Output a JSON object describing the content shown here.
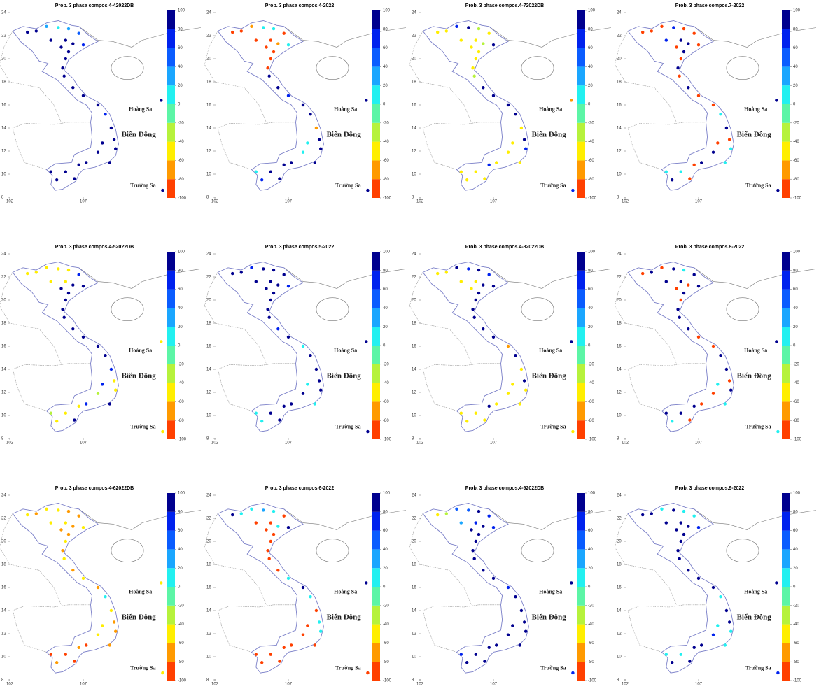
{
  "colorbar": {
    "ticks": [
      100,
      80,
      60,
      40,
      20,
      0,
      -20,
      -40,
      -60,
      -80,
      -100
    ],
    "colors": [
      "#ff4000",
      "#ff9a00",
      "#ffee00",
      "#b6f23c",
      "#5cf5a6",
      "#22f0f0",
      "#1aa6ff",
      "#0a5cff",
      "#0022ee",
      "#00008f"
    ]
  },
  "lat_ticks": [
    24,
    22,
    20,
    18,
    16,
    14,
    12,
    10,
    8
  ],
  "lon_ticks": [
    102,
    107
  ],
  "labels": {
    "hoang_sa": "Hoàng Sa",
    "bien_dong": "Biển Đông",
    "truong_sa": "Trường Sa"
  },
  "stations": [
    [
      103.2,
      22.3
    ],
    [
      103.8,
      22.4
    ],
    [
      104.5,
      22.8
    ],
    [
      105.3,
      22.7
    ],
    [
      106,
      22.6
    ],
    [
      106.7,
      22.2
    ],
    [
      105.8,
      21.6
    ],
    [
      106.3,
      21.3
    ],
    [
      107,
      21.2
    ],
    [
      105.5,
      21
    ],
    [
      104.8,
      21.6
    ],
    [
      106,
      20.6
    ],
    [
      105.8,
      20
    ],
    [
      105.6,
      19.2
    ],
    [
      105.7,
      18.5
    ],
    [
      106.3,
      17.5
    ],
    [
      107,
      16.8
    ],
    [
      108,
      16
    ],
    [
      108.5,
      15.2
    ],
    [
      108.9,
      14
    ],
    [
      109.1,
      13
    ],
    [
      108.3,
      12.7
    ],
    [
      109.2,
      12.2
    ],
    [
      108,
      11.9
    ],
    [
      108.8,
      11
    ],
    [
      107.2,
      11
    ],
    [
      106.7,
      10.8
    ],
    [
      105.8,
      10.2
    ],
    [
      105.2,
      9.5
    ],
    [
      106.4,
      9.6
    ],
    [
      104.8,
      10.2
    ],
    [
      112.3,
      16.4
    ],
    [
      112.4,
      8.6
    ]
  ],
  "panels": [
    {
      "title": "Prob. 3 phase compos.4-42022DB",
      "values": [
        90,
        90,
        30,
        10,
        30,
        50,
        90,
        90,
        70,
        90,
        90,
        90,
        90,
        90,
        90,
        90,
        90,
        90,
        70,
        90,
        90,
        90,
        90,
        90,
        90,
        90,
        90,
        90,
        90,
        90,
        90,
        90,
        90
      ]
    },
    {
      "title": "Prob. 3 phase compos.4-2022",
      "values": [
        -90,
        -90,
        -70,
        10,
        10,
        -90,
        -90,
        -70,
        10,
        -90,
        -90,
        -90,
        -90,
        -90,
        90,
        90,
        70,
        90,
        90,
        -70,
        90,
        10,
        90,
        10,
        90,
        90,
        90,
        90,
        70,
        90,
        10,
        90,
        90
      ]
    },
    {
      "title": "Prob. 3 phase compos.4-72022DB",
      "values": [
        -50,
        -50,
        70,
        90,
        -30,
        -50,
        -50,
        -30,
        90,
        -50,
        -50,
        -50,
        -50,
        -50,
        -30,
        90,
        90,
        90,
        90,
        -50,
        90,
        -50,
        70,
        -50,
        -50,
        -50,
        70,
        -50,
        -50,
        -50,
        -50,
        -70,
        70
      ]
    },
    {
      "title": "Prob. 3 phase compos.7-2022",
      "values": [
        -90,
        -90,
        -90,
        70,
        -90,
        -90,
        90,
        90,
        -90,
        -90,
        70,
        90,
        -90,
        90,
        -90,
        90,
        -90,
        -90,
        10,
        90,
        -90,
        -90,
        10,
        90,
        10,
        90,
        -90,
        10,
        90,
        -90,
        10,
        90,
        90
      ]
    },
    {
      "title": "Prob. 3 phase compos.4-52022DB",
      "values": [
        -50,
        -50,
        -50,
        -50,
        -50,
        70,
        -50,
        90,
        90,
        90,
        -50,
        90,
        90,
        90,
        90,
        90,
        90,
        90,
        90,
        70,
        -50,
        70,
        -50,
        -30,
        90,
        70,
        -50,
        -50,
        -50,
        90,
        -30,
        -50,
        -50
      ]
    },
    {
      "title": "Prob. 3 phase compos.5-2022",
      "values": [
        90,
        90,
        70,
        90,
        90,
        90,
        90,
        90,
        70,
        90,
        90,
        90,
        90,
        90,
        90,
        70,
        90,
        10,
        90,
        90,
        90,
        10,
        90,
        90,
        10,
        90,
        90,
        90,
        10,
        90,
        10,
        90,
        90
      ]
    },
    {
      "title": "Prob. 3 phase compos.4-82022DB",
      "values": [
        -50,
        -50,
        90,
        70,
        90,
        70,
        -50,
        90,
        90,
        -50,
        -50,
        90,
        90,
        90,
        90,
        90,
        90,
        -70,
        90,
        -50,
        90,
        -50,
        -50,
        -50,
        -50,
        -50,
        90,
        -50,
        -50,
        -50,
        -50,
        90,
        -50
      ]
    },
    {
      "title": "Prob. 3 phase compos.8-2022",
      "values": [
        -90,
        90,
        -90,
        90,
        10,
        90,
        90,
        -90,
        90,
        -90,
        90,
        90,
        -90,
        90,
        90,
        90,
        -90,
        -90,
        90,
        90,
        -90,
        10,
        90,
        -90,
        10,
        -90,
        90,
        90,
        10,
        -90,
        90,
        90,
        10
      ]
    },
    {
      "title": "Prob. 3 phase compos.4-62022DB",
      "values": [
        -50,
        -70,
        -50,
        -50,
        -70,
        -70,
        -50,
        -70,
        -50,
        -70,
        -50,
        -70,
        -50,
        -70,
        -50,
        -70,
        -50,
        -70,
        10,
        -50,
        -70,
        -50,
        -70,
        -50,
        -70,
        -90,
        -70,
        -90,
        -70,
        -90,
        -90,
        -50,
        -50
      ]
    },
    {
      "title": "Prob. 3 phase compos.6-2022",
      "values": [
        90,
        10,
        10,
        30,
        10,
        -90,
        -90,
        10,
        90,
        -90,
        -90,
        -90,
        -90,
        -90,
        -90,
        -90,
        10,
        90,
        10,
        -90,
        10,
        -90,
        10,
        -90,
        -90,
        -90,
        -90,
        -90,
        -90,
        -90,
        -90,
        90,
        -90
      ]
    },
    {
      "title": "Prob. 3 phase compos.4-92022DB",
      "values": [
        -50,
        -30,
        50,
        50,
        90,
        70,
        70,
        90,
        70,
        90,
        30,
        90,
        90,
        90,
        90,
        90,
        90,
        70,
        90,
        90,
        90,
        90,
        90,
        90,
        90,
        90,
        90,
        90,
        90,
        90,
        70,
        90,
        70
      ]
    },
    {
      "title": "Prob. 3 phase compos.9-2022",
      "values": [
        90,
        90,
        10,
        90,
        10,
        10,
        90,
        90,
        70,
        90,
        90,
        90,
        90,
        90,
        90,
        90,
        90,
        90,
        10,
        90,
        90,
        10,
        10,
        70,
        10,
        90,
        90,
        10,
        90,
        90,
        10,
        90,
        70
      ]
    }
  ]
}
